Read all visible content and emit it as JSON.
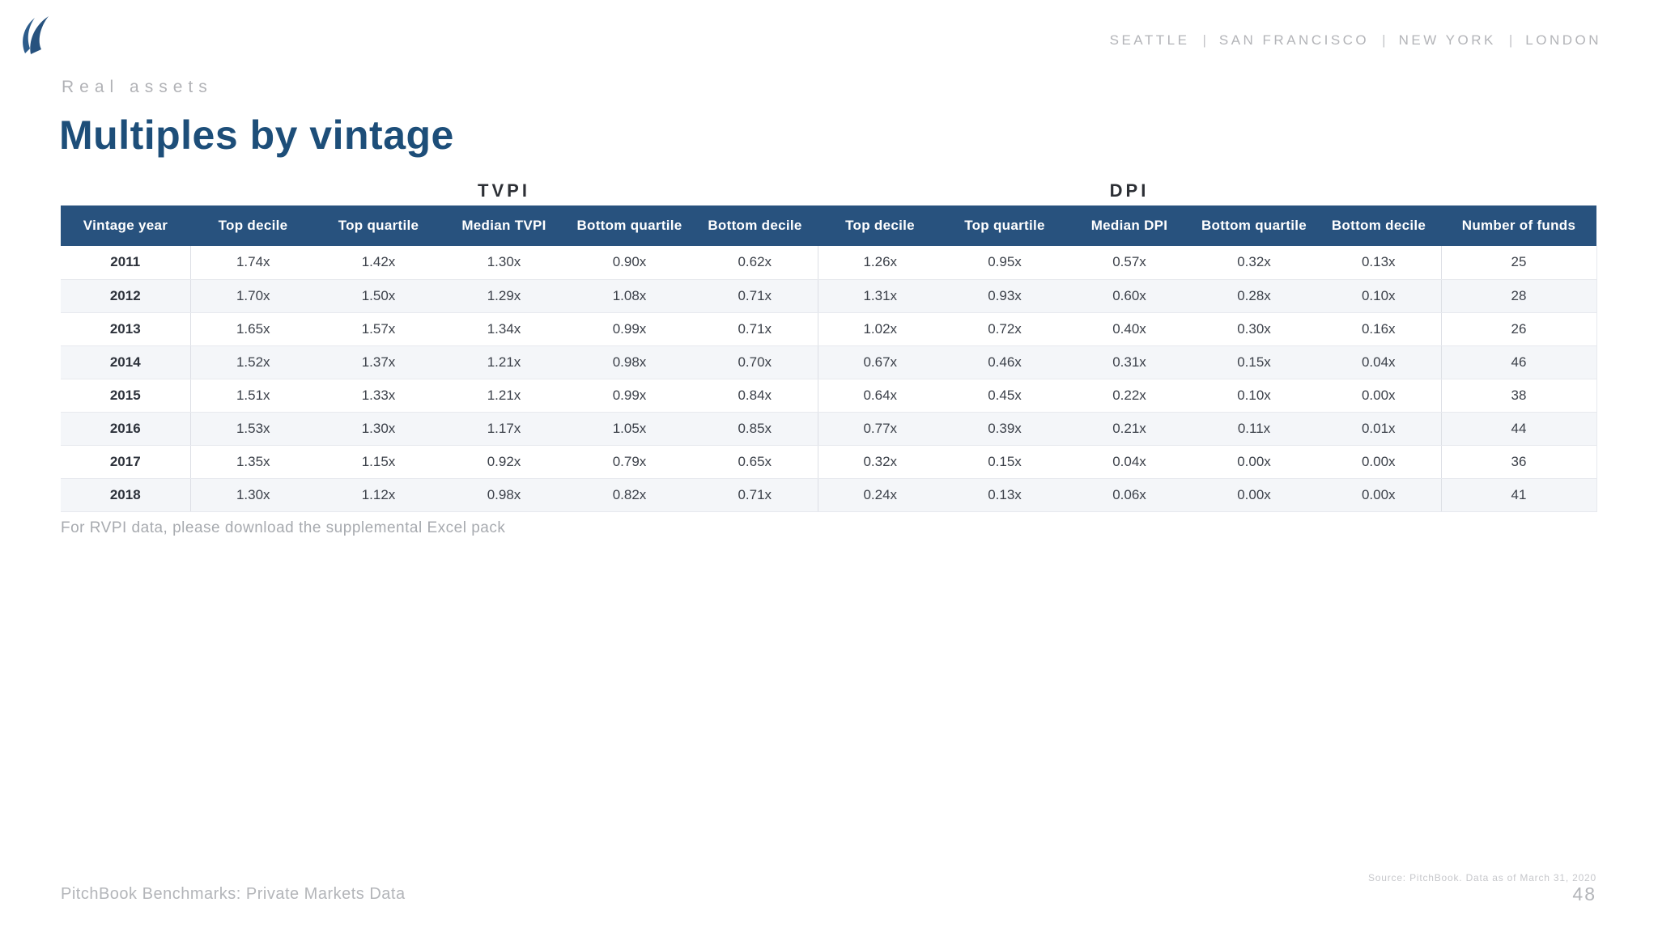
{
  "header": {
    "cities": [
      "SEATTLE",
      "SAN FRANCISCO",
      "NEW YORK",
      "LONDON"
    ],
    "cities_separator": "|"
  },
  "titles": {
    "eyebrow": "Real assets",
    "main": "Multiples by vintage"
  },
  "table": {
    "group_headers": [
      "TVPI",
      "DPI"
    ],
    "columns": [
      "Vintage year",
      "Top decile",
      "Top quartile",
      "Median TVPI",
      "Bottom quartile",
      "Bottom decile",
      "Top decile",
      "Top quartile",
      "Median DPI",
      "Bottom quartile",
      "Bottom decile",
      "Number of funds"
    ],
    "rows": [
      [
        "2011",
        "1.74x",
        "1.42x",
        "1.30x",
        "0.90x",
        "0.62x",
        "1.26x",
        "0.95x",
        "0.57x",
        "0.32x",
        "0.13x",
        "25"
      ],
      [
        "2012",
        "1.70x",
        "1.50x",
        "1.29x",
        "1.08x",
        "0.71x",
        "1.31x",
        "0.93x",
        "0.60x",
        "0.28x",
        "0.10x",
        "28"
      ],
      [
        "2013",
        "1.65x",
        "1.57x",
        "1.34x",
        "0.99x",
        "0.71x",
        "1.02x",
        "0.72x",
        "0.40x",
        "0.30x",
        "0.16x",
        "26"
      ],
      [
        "2014",
        "1.52x",
        "1.37x",
        "1.21x",
        "0.98x",
        "0.70x",
        "0.67x",
        "0.46x",
        "0.31x",
        "0.15x",
        "0.04x",
        "46"
      ],
      [
        "2015",
        "1.51x",
        "1.33x",
        "1.21x",
        "0.99x",
        "0.84x",
        "0.64x",
        "0.45x",
        "0.22x",
        "0.10x",
        "0.00x",
        "38"
      ],
      [
        "2016",
        "1.53x",
        "1.30x",
        "1.17x",
        "1.05x",
        "0.85x",
        "0.77x",
        "0.39x",
        "0.21x",
        "0.11x",
        "0.01x",
        "44"
      ],
      [
        "2017",
        "1.35x",
        "1.15x",
        "0.92x",
        "0.79x",
        "0.65x",
        "0.32x",
        "0.15x",
        "0.04x",
        "0.00x",
        "0.00x",
        "36"
      ],
      [
        "2018",
        "1.30x",
        "1.12x",
        "0.98x",
        "0.82x",
        "0.71x",
        "0.24x",
        "0.13x",
        "0.06x",
        "0.00x",
        "0.00x",
        "41"
      ]
    ],
    "note": "For RVPI data, please download the supplemental Excel pack"
  },
  "footer": {
    "left": "PitchBook Benchmarks: Private Markets Data",
    "source": "Source: PitchBook. Data as of March 31, 2020",
    "page_number": "48"
  },
  "colors": {
    "header_bar": "#28527e",
    "title_blue": "#1d4e79",
    "row_stripe": "#f4f6f9",
    "muted_gray": "#b3b4b8"
  }
}
